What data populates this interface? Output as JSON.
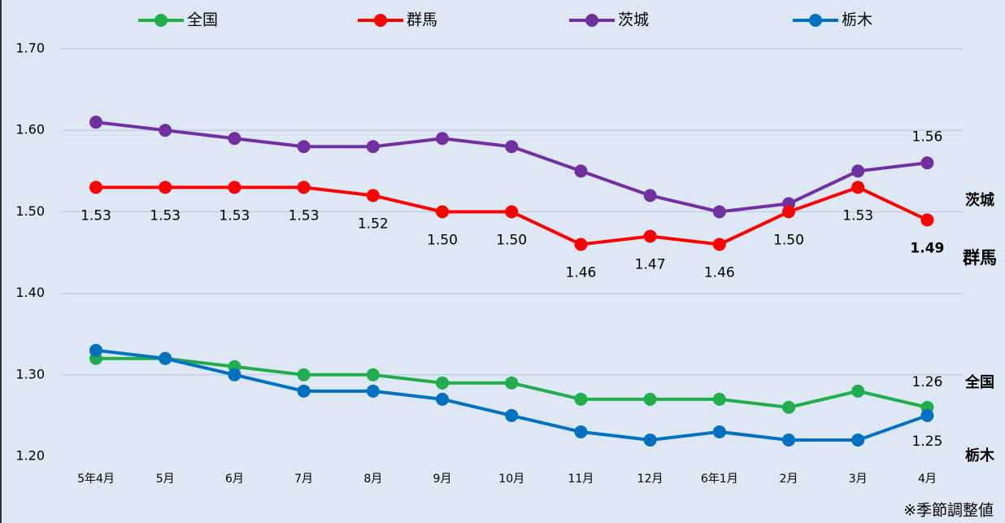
{
  "chart_data": {
    "type": "line",
    "categories": [
      "5年4月",
      "5月",
      "6月",
      "7月",
      "8月",
      "9月",
      "10月",
      "11月",
      "12月",
      "6年1月",
      "2月",
      "3月",
      "4月"
    ],
    "ylim": [
      1.2,
      1.7
    ],
    "yticks": [
      {
        "value": 1.2,
        "label": "1.20"
      },
      {
        "value": 1.3,
        "label": "1.30"
      },
      {
        "value": 1.4,
        "label": "1.40"
      },
      {
        "value": 1.5,
        "label": "1.50"
      },
      {
        "value": 1.6,
        "label": "1.60"
      },
      {
        "value": 1.7,
        "label": "1.70"
      }
    ],
    "grid": true,
    "series": [
      {
        "name": "全国",
        "color": "#21ad4b",
        "values": [
          1.32,
          1.32,
          1.31,
          1.3,
          1.3,
          1.29,
          1.29,
          1.27,
          1.27,
          1.27,
          1.26,
          1.28,
          1.26
        ],
        "value_labels": [
          null,
          null,
          null,
          null,
          null,
          null,
          null,
          null,
          null,
          null,
          null,
          null,
          "1.26"
        ]
      },
      {
        "name": "群馬",
        "color": "#ff0000",
        "values": [
          1.53,
          1.53,
          1.53,
          1.53,
          1.52,
          1.5,
          1.5,
          1.46,
          1.47,
          1.46,
          1.5,
          1.53,
          1.49
        ],
        "value_labels": [
          "1.53",
          "1.53",
          "1.53",
          "1.53",
          "1.52",
          "1.50",
          "1.50",
          "1.46",
          "1.47",
          "1.46",
          "1.50",
          "1.53",
          "1.49"
        ]
      },
      {
        "name": "茨城",
        "color": "#7030a0",
        "values": [
          1.61,
          1.6,
          1.59,
          1.58,
          1.58,
          1.59,
          1.58,
          1.55,
          1.52,
          1.5,
          1.51,
          1.55,
          1.56
        ],
        "value_labels": [
          null,
          null,
          null,
          null,
          null,
          null,
          null,
          null,
          null,
          null,
          null,
          null,
          "1.56"
        ]
      },
      {
        "name": "栃木",
        "color": "#0070c0",
        "values": [
          1.33,
          1.32,
          1.3,
          1.28,
          1.28,
          1.27,
          1.25,
          1.23,
          1.22,
          1.23,
          1.22,
          1.22,
          1.25
        ],
        "value_labels": [
          null,
          null,
          null,
          null,
          null,
          null,
          null,
          null,
          null,
          null,
          null,
          null,
          "1.25"
        ]
      }
    ],
    "annotation": "※季節調整値"
  }
}
